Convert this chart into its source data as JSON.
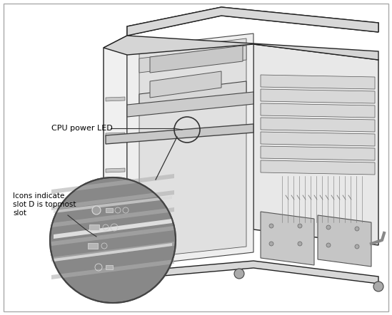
{
  "background_color": "#ffffff",
  "border_color": "#aaaaaa",
  "fig_width": 5.49,
  "fig_height": 4.42,
  "dpi": 100,
  "label_cpu_power_led": "CPU power LED",
  "label_icons": "Icons indicate\nslot D is topmost\nslot",
  "chassis_line_color": "#222222",
  "zoom_circle_bg": "#8a8a8a",
  "annotation_line_color": "#333333"
}
